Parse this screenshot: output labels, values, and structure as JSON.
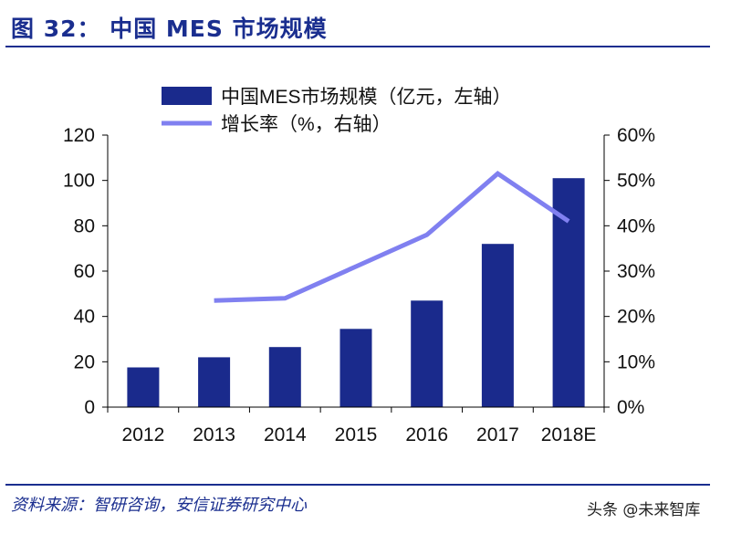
{
  "figure": {
    "title": "图 32： 中国 MES 市场规模",
    "source": "资料来源：智研咨询，安信证券研究中心",
    "watermark": "头条 @未来智库"
  },
  "colors": {
    "title": "#1a2e8f",
    "bar": "#1a2a8c",
    "line": "#8080f0",
    "axis": "#000000"
  },
  "chart_data": {
    "type": "bar+line",
    "categories": [
      "2012",
      "2013",
      "2014",
      "2015",
      "2016",
      "2017",
      "2018E"
    ],
    "series": [
      {
        "name": "中国MES市场规模（亿元，左轴）",
        "type": "bar",
        "axis": "left",
        "values": [
          17.5,
          22,
          26.5,
          34.5,
          47,
          72,
          101
        ]
      },
      {
        "name": "增长率（%，右轴）",
        "type": "line",
        "axis": "right",
        "values": [
          null,
          23.5,
          24,
          31,
          38,
          51.5,
          41
        ]
      }
    ],
    "left_axis": {
      "min": 0,
      "max": 120,
      "step": 20,
      "tick_labels": [
        "0",
        "20",
        "40",
        "60",
        "80",
        "100",
        "120"
      ]
    },
    "right_axis": {
      "min": 0,
      "max": 60,
      "step": 10,
      "tick_labels": [
        "0%",
        "10%",
        "20%",
        "30%",
        "40%",
        "50%",
        "60%"
      ]
    },
    "legend_position": "top",
    "grid": false
  }
}
